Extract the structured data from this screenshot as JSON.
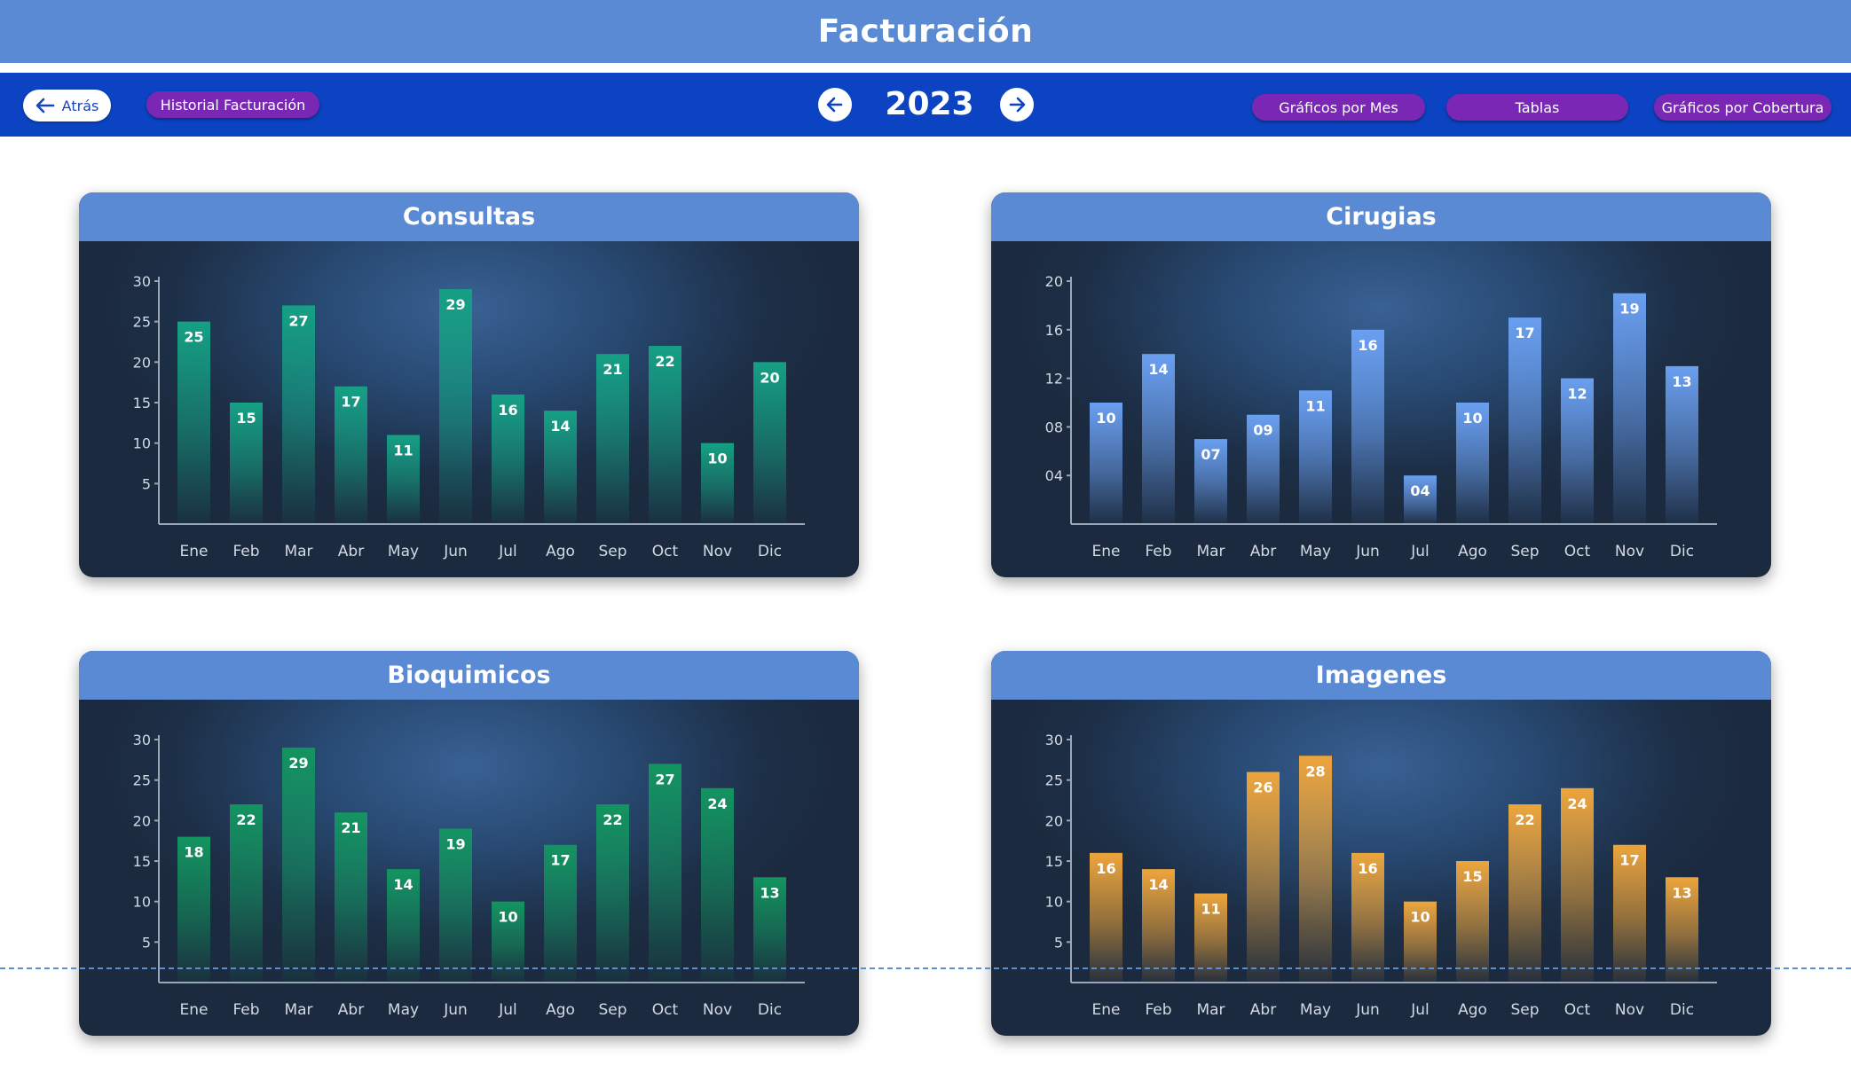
{
  "header": {
    "title": "Facturación"
  },
  "nav": {
    "back_label": "Atrás",
    "history_label": "Historial Facturación",
    "year": "2023",
    "tabs": [
      "Gráficos por Mes",
      "Tablas",
      "Gráficos por Cobertura"
    ]
  },
  "colors": {
    "consultas": "#15a084",
    "cirugias": "#6a9ff0",
    "bioquimicos": "#139460",
    "imagenes": "#eda53c"
  },
  "chart_data": [
    {
      "type": "bar",
      "title": "Consultas",
      "categories": [
        "Ene",
        "Feb",
        "Mar",
        "Abr",
        "May",
        "Jun",
        "Jul",
        "Ago",
        "Sep",
        "Oct",
        "Nov",
        "Dic"
      ],
      "values": [
        25,
        15,
        27,
        17,
        11,
        29,
        16,
        14,
        21,
        22,
        10,
        20
      ],
      "value_labels": [
        "25",
        "15",
        "27",
        "17",
        "11",
        "29",
        "16",
        "14",
        "21",
        "22",
        "10",
        "20"
      ],
      "yticks": [
        "5",
        "10",
        "15",
        "20",
        "25",
        "30"
      ],
      "ylim": [
        0,
        30
      ]
    },
    {
      "type": "bar",
      "title": "Cirugias",
      "categories": [
        "Ene",
        "Feb",
        "Mar",
        "Abr",
        "May",
        "Jun",
        "Jul",
        "Ago",
        "Sep",
        "Oct",
        "Nov",
        "Dic"
      ],
      "values": [
        10,
        14,
        7,
        9,
        11,
        16,
        4,
        10,
        17,
        12,
        19,
        13
      ],
      "value_labels": [
        "10",
        "14",
        "07",
        "09",
        "11",
        "16",
        "04",
        "10",
        "17",
        "12",
        "19",
        "13"
      ],
      "yticks": [
        "04",
        "08",
        "12",
        "16",
        "20"
      ],
      "ylim": [
        0,
        20
      ]
    },
    {
      "type": "bar",
      "title": "Bioquimicos",
      "categories": [
        "Ene",
        "Feb",
        "Mar",
        "Abr",
        "May",
        "Jun",
        "Jul",
        "Ago",
        "Sep",
        "Oct",
        "Nov",
        "Dic"
      ],
      "values": [
        18,
        22,
        29,
        21,
        14,
        19,
        10,
        17,
        22,
        27,
        24,
        13
      ],
      "value_labels": [
        "18",
        "22",
        "29",
        "21",
        "14",
        "19",
        "10",
        "17",
        "22",
        "27",
        "24",
        "13"
      ],
      "yticks": [
        "5",
        "10",
        "15",
        "20",
        "25",
        "30"
      ],
      "ylim": [
        0,
        30
      ]
    },
    {
      "type": "bar",
      "title": "Imagenes",
      "categories": [
        "Ene",
        "Feb",
        "Mar",
        "Abr",
        "May",
        "Jun",
        "Jul",
        "Ago",
        "Sep",
        "Oct",
        "Nov",
        "Dic"
      ],
      "values": [
        16,
        14,
        11,
        26,
        28,
        16,
        10,
        15,
        22,
        24,
        17,
        13
      ],
      "value_labels": [
        "16",
        "14",
        "11",
        "26",
        "28",
        "16",
        "10",
        "15",
        "22",
        "24",
        "17",
        "13"
      ],
      "yticks": [
        "5",
        "10",
        "15",
        "20",
        "25",
        "30"
      ],
      "ylim": [
        0,
        30
      ]
    }
  ]
}
